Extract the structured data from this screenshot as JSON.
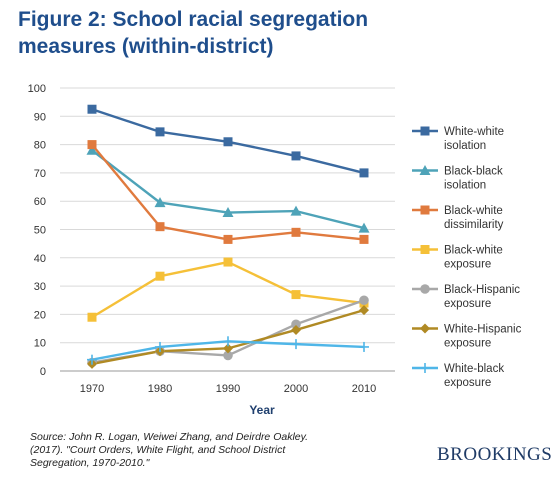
{
  "title_line1": "Figure 2: School racial segregation",
  "title_line2": "measures (within-district)",
  "source_line1": "Source: John R. Logan, Weiwei Zhang, and Deirdre Oakley.",
  "source_line2": "(2017). \"Court Orders, White Flight, and School District",
  "source_line3": "Segregation, 1970-2010.\"",
  "brand": "BROOKINGS",
  "chart_data": {
    "type": "line",
    "title": "Figure 2: School racial segregation measures (within-district)",
    "xlabel": "Year",
    "ylabel": "",
    "categories": [
      "1970",
      "1980",
      "1990",
      "2000",
      "2010"
    ],
    "ylim": [
      0,
      100
    ],
    "yticks": [
      "0",
      "10",
      "20",
      "30",
      "40",
      "50",
      "60",
      "70",
      "80",
      "90",
      "100"
    ],
    "grid": true,
    "legend_position": "right",
    "series": [
      {
        "name": "White-white isolation",
        "legend_lines": [
          "White-white",
          "isolation"
        ],
        "color": "#3b6aa0",
        "marker": "square",
        "values": [
          92.5,
          84.5,
          81,
          76,
          70
        ]
      },
      {
        "name": "Black-black isolation",
        "legend_lines": [
          "Black-black",
          "isolation"
        ],
        "color": "#4ea3b8",
        "marker": "triangle",
        "values": [
          78,
          59.5,
          56,
          56.5,
          50.5
        ]
      },
      {
        "name": "Black-white dissimilarity",
        "legend_lines": [
          "Black-white",
          "dissimilarity"
        ],
        "color": "#e07a3e",
        "marker": "square",
        "values": [
          80,
          51,
          46.5,
          49,
          46.5
        ]
      },
      {
        "name": "Black-white exposure",
        "legend_lines": [
          "Black-white",
          "exposure"
        ],
        "color": "#f5c038",
        "marker": "square",
        "values": [
          19,
          33.5,
          38.5,
          27,
          24
        ]
      },
      {
        "name": "Black-Hispanic exposure",
        "legend_lines": [
          "Black-Hispanic",
          "exposure"
        ],
        "color": "#a8a8a8",
        "marker": "circle",
        "values": [
          3,
          7,
          5.5,
          16.5,
          25
        ]
      },
      {
        "name": "White-Hispanic exposure",
        "legend_lines": [
          "White-Hispanic",
          "exposure"
        ],
        "color": "#b08a24",
        "marker": "diamond",
        "values": [
          2.5,
          7,
          8,
          14.5,
          21.5
        ]
      },
      {
        "name": "White-black exposure",
        "legend_lines": [
          "White-black",
          "exposure"
        ],
        "color": "#4fb6e8",
        "marker": "plus",
        "values": [
          4,
          8.5,
          10.5,
          9.5,
          8.5
        ]
      }
    ]
  }
}
